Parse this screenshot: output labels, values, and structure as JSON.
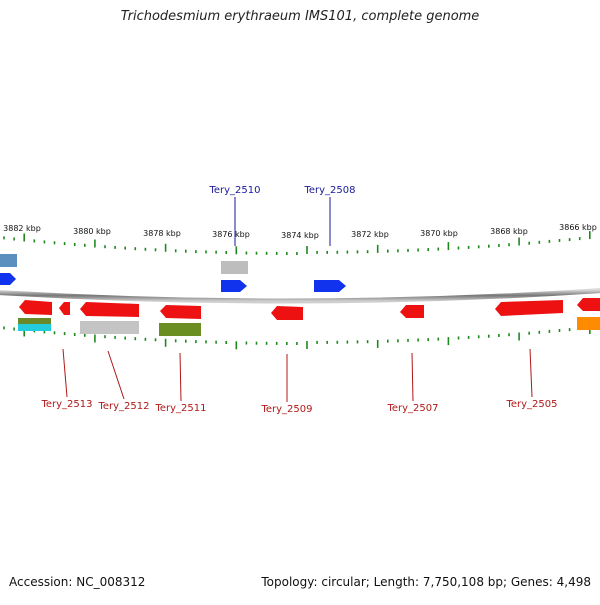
{
  "genome": {
    "title": "Trichodesmium erythraeum IMS101, complete genome",
    "accession": "Accession: NC_008312",
    "summary": "Topology: circular; Length: 7,750,108 bp; Genes: 4,498"
  },
  "scale": {
    "ticks": [
      "3882 kbp",
      "3880 kbp",
      "3878 kbp",
      "3876 kbp",
      "3874 kbp",
      "3872 kbp",
      "3870 kbp",
      "3868 kbp",
      "3866 kbp"
    ]
  },
  "genes": {
    "forward": [
      {
        "name": "Tery_2510",
        "color": "#1133ee"
      },
      {
        "name": "Tery_2508",
        "color": "#1133ee"
      }
    ],
    "reverse": [
      {
        "name": "Tery_2513",
        "color": "#ee1111"
      },
      {
        "name": "Tery_2512",
        "color": "#ee1111"
      },
      {
        "name": "Tery_2511",
        "color": "#ee1111"
      },
      {
        "name": "Tery_2509",
        "color": "#ee1111"
      },
      {
        "name": "Tery_2507",
        "color": "#ee1111"
      },
      {
        "name": "Tery_2505",
        "color": "#ee1111"
      }
    ]
  },
  "colors": {
    "forward_label": "#1a1a99",
    "reverse_label": "#b01818",
    "tick": "#1e8a1e",
    "backbone": "#888888"
  }
}
